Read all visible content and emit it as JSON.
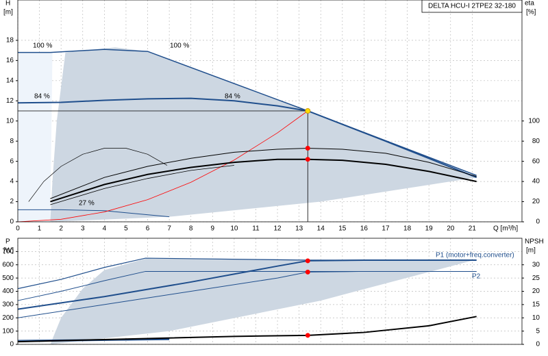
{
  "chart_data": [
    {
      "type": "line",
      "title": "DELTA HCU-I 2TPE2 32-180",
      "ylabel": "H",
      "yunit": "[m]",
      "y2label": "eta",
      "y2unit": "[%]",
      "xlabel": "Q [m³/h]",
      "xlim": [
        0,
        23.3
      ],
      "xticks": [
        0,
        1,
        2,
        3,
        4,
        5,
        6,
        7,
        8,
        9,
        10,
        11,
        12,
        13,
        14,
        15,
        16,
        17,
        18,
        19,
        20,
        21
      ],
      "ylim": [
        0,
        22
      ],
      "yticks": [
        0,
        2,
        4,
        6,
        8,
        10,
        12,
        14,
        16,
        18
      ],
      "y2lim": [
        0,
        220
      ],
      "y2ticks": [
        0,
        20,
        40,
        60,
        80,
        100
      ],
      "grid": true,
      "series": [
        {
          "mode": "area",
          "color": "#eef4fb",
          "x": [
            0,
            1.5,
            1.6,
            0
          ],
          "values": [
            0,
            0,
            16.8,
            16.8
          ]
        },
        {
          "mode": "area",
          "color": "#cdd7e2",
          "x": [
            1.5,
            1.6,
            1.8,
            2.2,
            4.5,
            6,
            13.4,
            21.2,
            14,
            7,
            1.5
          ],
          "values": [
            0,
            4,
            10,
            16.8,
            17.3,
            16.9,
            11,
            4.4,
            2.0,
            0.5,
            0
          ]
        },
        {
          "name": "100 %",
          "mode": "line",
          "color": "#1f4e8c",
          "width": 1.5,
          "x": [
            0,
            1.5,
            4,
            6,
            13.4,
            21.2
          ],
          "values": [
            16.8,
            16.8,
            17.1,
            16.9,
            11.0,
            4.6
          ]
        },
        {
          "name": "84 %",
          "mode": "line",
          "color": "#1f4e8c",
          "width": 2,
          "x": [
            0,
            2,
            4,
            6,
            8,
            10,
            12,
            13.4,
            17,
            21.2
          ],
          "values": [
            11.8,
            11.85,
            12.05,
            12.2,
            12.25,
            12.0,
            11.5,
            11.0,
            8.0,
            4.4
          ]
        },
        {
          "name": "27 %",
          "mode": "line",
          "color": "#1f4e8c",
          "width": 1,
          "x": [
            0,
            2,
            4,
            5,
            7
          ],
          "values": [
            1.2,
            1.2,
            1.1,
            0.9,
            0.5
          ]
        },
        {
          "mode": "line",
          "color": "#ff0000",
          "width": 0.8,
          "x": [
            0,
            2,
            4,
            6,
            8,
            10,
            12,
            13.4
          ],
          "values": [
            0,
            0.25,
            0.98,
            2.2,
            3.92,
            6.13,
            8.82,
            11.0
          ]
        },
        {
          "mode": "line",
          "color": "#000000",
          "width": 0.8,
          "x": [
            0,
            13.4,
            13.4
          ],
          "values": [
            11,
            11,
            0
          ]
        },
        {
          "mode": "line",
          "color": "#000000",
          "width": 0.7,
          "axis": "y2",
          "x": [
            0.5,
            1.2,
            2,
            3,
            4,
            5,
            6,
            6.9
          ],
          "values": [
            20,
            40,
            55,
            67,
            73,
            73,
            67,
            56
          ]
        },
        {
          "mode": "line",
          "color": "#000000",
          "width": 1,
          "axis": "y2",
          "x": [
            1.5,
            4,
            6,
            8,
            10,
            12,
            13.4,
            15,
            17,
            19,
            21.2
          ],
          "values": [
            23,
            44,
            55,
            63,
            69,
            72,
            73,
            72,
            68,
            59,
            45
          ]
        },
        {
          "mode": "line",
          "color": "#000000",
          "width": 2,
          "axis": "y2",
          "x": [
            1.5,
            4,
            6,
            8,
            10,
            12,
            13.4,
            15,
            17,
            19,
            21.2
          ],
          "values": [
            20,
            37,
            47,
            54,
            59,
            62,
            62,
            61,
            57,
            50,
            40
          ]
        },
        {
          "mode": "line",
          "color": "#000000",
          "width": 0.8,
          "axis": "y2",
          "x": [
            1.5,
            4,
            6,
            8,
            10
          ],
          "values": [
            17,
            33,
            43,
            51,
            56
          ]
        },
        {
          "mode": "markers",
          "color": "#ff0000",
          "axis": "y2",
          "x": [
            13.4,
            13.4
          ],
          "values": [
            73,
            62
          ]
        },
        {
          "mode": "markers",
          "color": "#ffdd00",
          "x": [
            13.4
          ],
          "values": [
            11
          ]
        }
      ]
    },
    {
      "type": "line",
      "ylabel": "P",
      "yunit": "[W]",
      "y2label": "NPSH",
      "y2unit": "[m]",
      "xlim": [
        0,
        23.3
      ],
      "ylim": [
        0,
        800
      ],
      "yticks": [
        0,
        100,
        200,
        300,
        400,
        500,
        600,
        700
      ],
      "y2lim": [
        0,
        40
      ],
      "y2ticks": [
        0,
        5,
        10,
        15,
        20,
        25,
        30
      ],
      "grid": true,
      "series": [
        {
          "mode": "area",
          "color": "#cdd7e2",
          "x": [
            1.5,
            2,
            3,
            4,
            6,
            13.4,
            21.2,
            14,
            7,
            1.5
          ],
          "values": [
            0,
            200,
            420,
            560,
            650,
            640,
            640,
            330,
            100,
            0
          ]
        },
        {
          "mode": "line",
          "color": "#1f4e8c",
          "width": 1.2,
          "x": [
            0,
            2,
            4,
            5.9,
            13.4,
            21.2
          ],
          "values": [
            420,
            490,
            580,
            650,
            635,
            635
          ]
        },
        {
          "mode": "line",
          "color": "#1f4e8c",
          "width": 1,
          "x": [
            0,
            2,
            4,
            5.9,
            13.4,
            21.2
          ],
          "values": [
            330,
            400,
            480,
            550,
            550,
            550
          ]
        },
        {
          "name": "P1 (motor+freq.converter)",
          "mode": "line",
          "color": "#1f4e8c",
          "width": 2,
          "x": [
            0,
            4,
            8,
            12,
            13.4,
            16,
            21.2
          ],
          "values": [
            265,
            360,
            470,
            590,
            630,
            635,
            635
          ]
        },
        {
          "name": "P2",
          "mode": "line",
          "color": "#1f4e8c",
          "width": 1,
          "x": [
            0,
            4,
            8,
            12,
            13.4,
            16,
            21.2
          ],
          "values": [
            200,
            300,
            400,
            500,
            545,
            550,
            550
          ]
        },
        {
          "mode": "line",
          "color": "#1f4e8c",
          "width": 1.5,
          "x": [
            0,
            7
          ],
          "values": [
            30,
            40
          ]
        },
        {
          "mode": "line",
          "color": "#1f4e8c",
          "width": 1,
          "x": [
            0,
            7
          ],
          "values": [
            20,
            35
          ]
        },
        {
          "mode": "line",
          "color": "#000000",
          "width": 2,
          "axis": "y2",
          "x": [
            0,
            5,
            10,
            13.4,
            16,
            19,
            21.2
          ],
          "values": [
            1,
            2,
            3,
            3.4,
            4.5,
            7,
            10.5
          ]
        },
        {
          "mode": "markers",
          "color": "#ff0000",
          "x": [
            13.4,
            13.4
          ],
          "values": [
            630,
            545
          ]
        },
        {
          "mode": "markers",
          "color": "#ff0000",
          "axis": "y2",
          "x": [
            13.4
          ],
          "values": [
            3.4
          ]
        }
      ]
    }
  ]
}
